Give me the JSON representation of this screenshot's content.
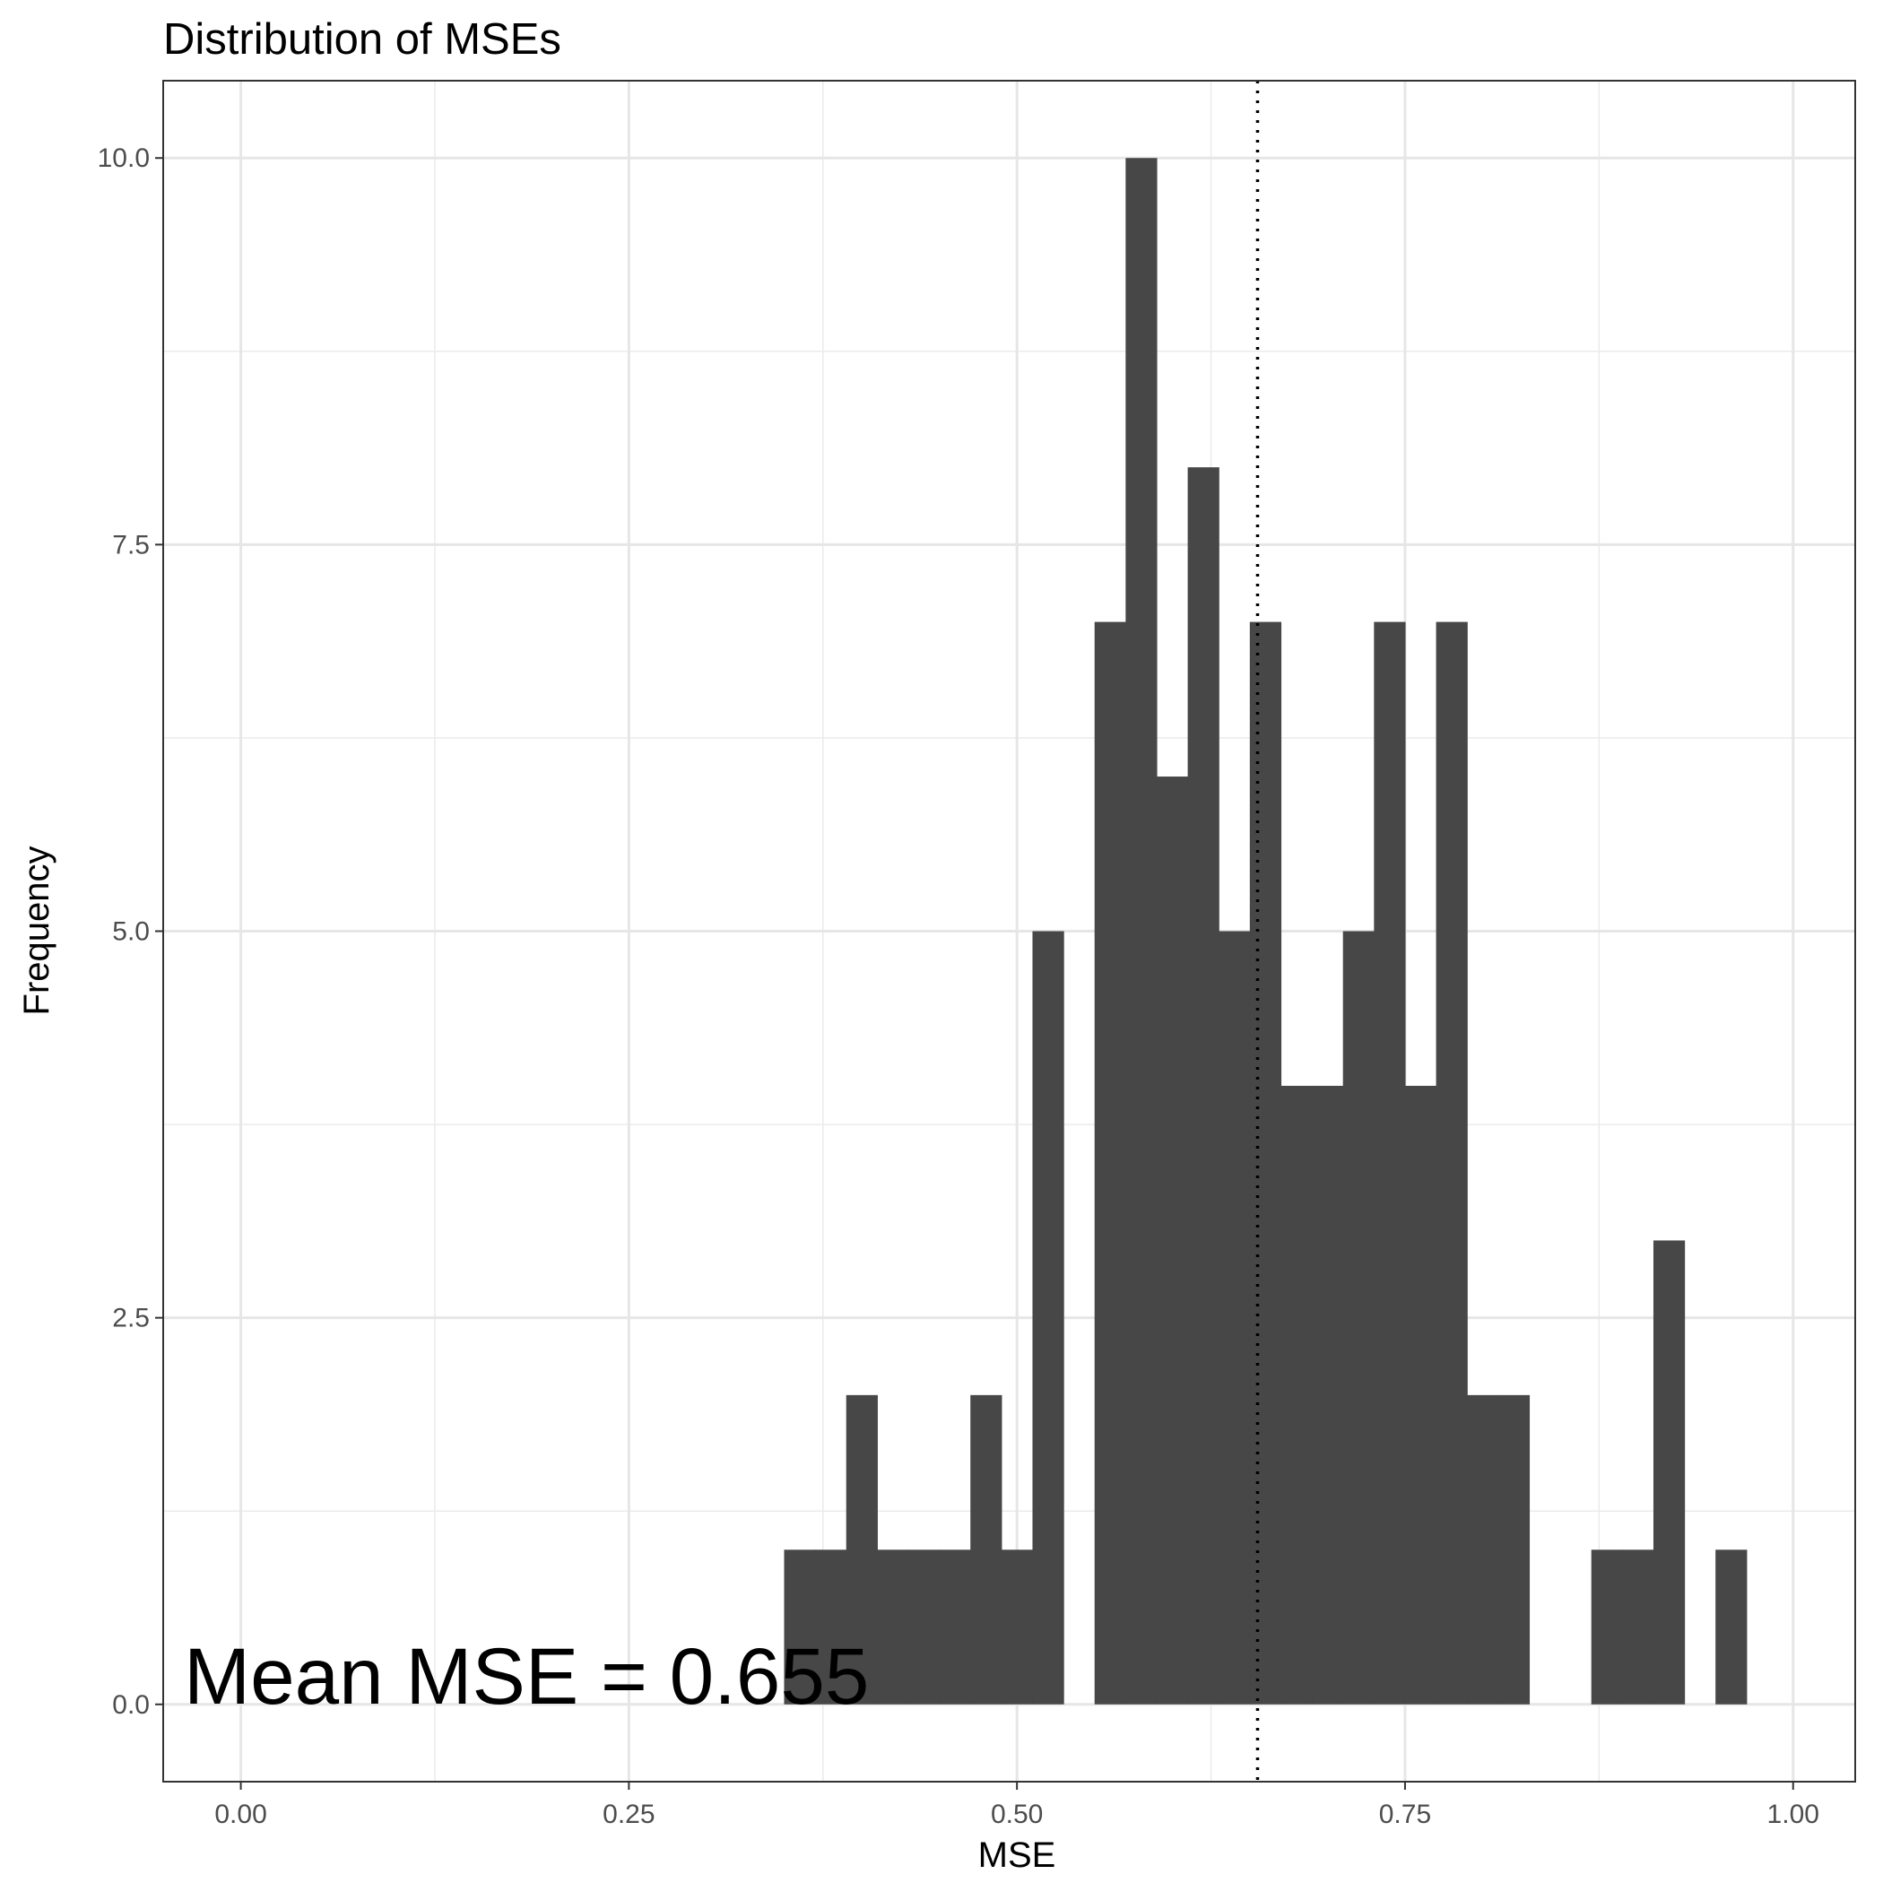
{
  "chart_data": {
    "type": "bar",
    "title": "Distribution of MSEs",
    "xlabel": "MSE",
    "ylabel": "Frequency",
    "xlim": [
      -0.05,
      1.04
    ],
    "ylim": [
      -0.5,
      10.5
    ],
    "x_ticks": [
      {
        "value": 0.0,
        "label": "0.00"
      },
      {
        "value": 0.25,
        "label": "0.25"
      },
      {
        "value": 0.5,
        "label": "0.50"
      },
      {
        "value": 0.75,
        "label": "0.75"
      },
      {
        "value": 1.0,
        "label": "1.00"
      }
    ],
    "y_ticks": [
      {
        "value": 0.0,
        "label": "0.0"
      },
      {
        "value": 2.5,
        "label": "2.5"
      },
      {
        "value": 5.0,
        "label": "5.0"
      },
      {
        "value": 7.5,
        "label": "7.5"
      },
      {
        "value": 10.0,
        "label": "10.0"
      }
    ],
    "x_minor_gridlines": [
      0.125,
      0.375,
      0.625,
      0.875
    ],
    "y_minor_gridlines": [
      1.25,
      3.75,
      6.25,
      8.75
    ],
    "bin_width": 0.02,
    "bins": [
      {
        "start": 0.35,
        "count": 1
      },
      {
        "start": 0.37,
        "count": 1
      },
      {
        "start": 0.39,
        "count": 2
      },
      {
        "start": 0.41,
        "count": 1
      },
      {
        "start": 0.43,
        "count": 1
      },
      {
        "start": 0.45,
        "count": 1
      },
      {
        "start": 0.47,
        "count": 2
      },
      {
        "start": 0.49,
        "count": 1
      },
      {
        "start": 0.51,
        "count": 5
      },
      {
        "start": 0.53,
        "count": 0
      },
      {
        "start": 0.55,
        "count": 7
      },
      {
        "start": 0.57,
        "count": 10
      },
      {
        "start": 0.59,
        "count": 6
      },
      {
        "start": 0.61,
        "count": 8
      },
      {
        "start": 0.63,
        "count": 5
      },
      {
        "start": 0.65,
        "count": 7
      },
      {
        "start": 0.67,
        "count": 4
      },
      {
        "start": 0.69,
        "count": 4
      },
      {
        "start": 0.71,
        "count": 5
      },
      {
        "start": 0.73,
        "count": 7
      },
      {
        "start": 0.75,
        "count": 4
      },
      {
        "start": 0.77,
        "count": 7
      },
      {
        "start": 0.79,
        "count": 2
      },
      {
        "start": 0.81,
        "count": 2
      },
      {
        "start": 0.83,
        "count": 0
      },
      {
        "start": 0.85,
        "count": 0
      },
      {
        "start": 0.87,
        "count": 1
      },
      {
        "start": 0.89,
        "count": 1
      },
      {
        "start": 0.91,
        "count": 3
      },
      {
        "start": 0.93,
        "count": 0
      },
      {
        "start": 0.95,
        "count": 1
      }
    ],
    "mean_line": {
      "x": 0.655,
      "style": "dotted"
    },
    "annotation": "Mean MSE = 0.655",
    "bar_color": "#474747",
    "grid": true,
    "legend": "none"
  }
}
